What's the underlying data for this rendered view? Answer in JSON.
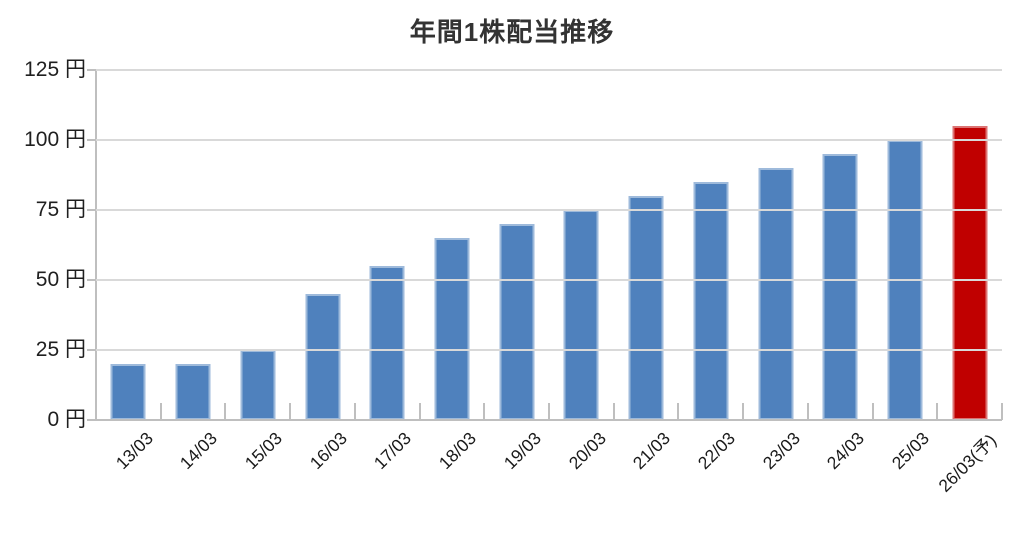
{
  "title": "年間1株配当推移",
  "chart_data": {
    "type": "bar",
    "title": "年間1株配当推移",
    "categories": [
      "13/03",
      "14/03",
      "15/03",
      "16/03",
      "17/03",
      "18/03",
      "19/03",
      "20/03",
      "21/03",
      "22/03",
      "23/03",
      "24/03",
      "25/03",
      "26/03(予)"
    ],
    "values": [
      20,
      20,
      25,
      45,
      55,
      65,
      70,
      75,
      80,
      85,
      90,
      95,
      100,
      105
    ],
    "unit": "円",
    "xlabel": "",
    "ylabel": "",
    "ylim": [
      0,
      125
    ],
    "ytick_step": 25,
    "ytick_labels": [
      "0 円",
      "25 円",
      "50 円",
      "75 円",
      "100 円",
      "125 円"
    ],
    "grid": true,
    "legend": "none",
    "bar_color": "#4F81BD",
    "highlight_color": "#C00000",
    "highlight_index": 13,
    "gridline_color": "#D9D9D9",
    "axis_color": "#BFBFBF"
  }
}
